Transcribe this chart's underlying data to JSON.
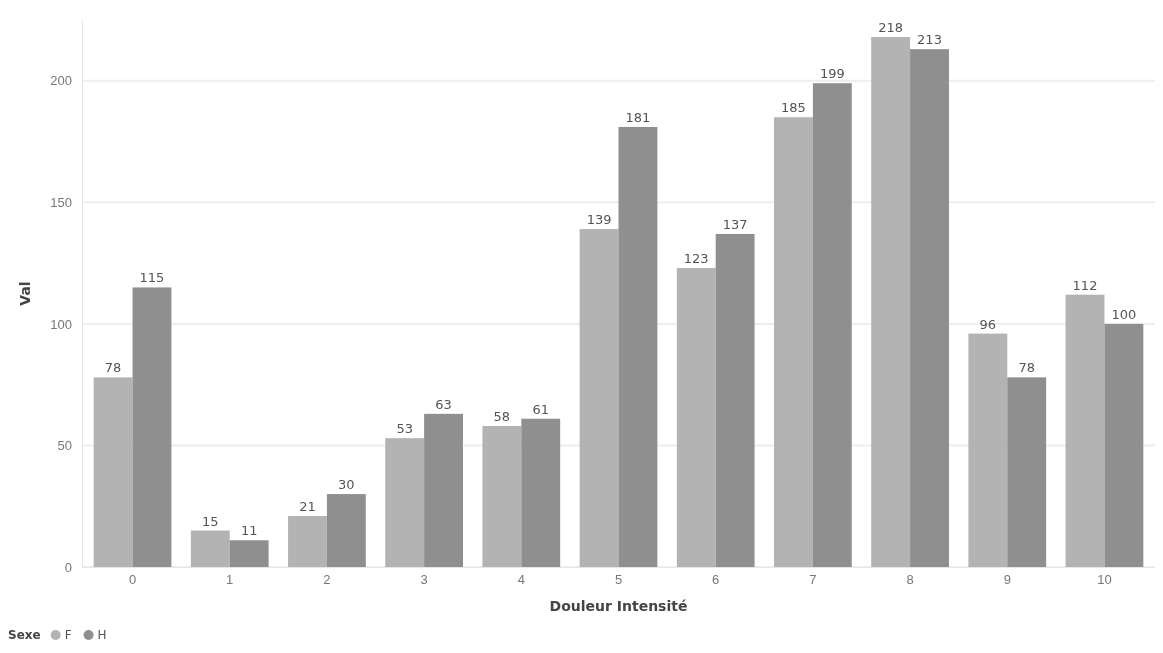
{
  "chart_data": {
    "type": "bar",
    "xlabel": "Douleur Intensité",
    "ylabel": "Val",
    "legend_title": "Sexe",
    "legend": "bottom left",
    "categories": [
      "0",
      "1",
      "2",
      "3",
      "4",
      "5",
      "6",
      "7",
      "8",
      "9",
      "10"
    ],
    "series": [
      {
        "name": "F",
        "color": "#b3b3b3",
        "values": [
          78,
          15,
          21,
          53,
          58,
          139,
          123,
          185,
          218,
          96,
          112
        ]
      },
      {
        "name": "H",
        "color": "#8f8f8f",
        "values": [
          115,
          11,
          30,
          63,
          61,
          181,
          137,
          199,
          213,
          78,
          100
        ]
      }
    ],
    "ylim": [
      0,
      225
    ],
    "yticks": [
      0,
      50,
      100,
      150,
      200
    ],
    "grid": "y",
    "data_labels": true
  }
}
